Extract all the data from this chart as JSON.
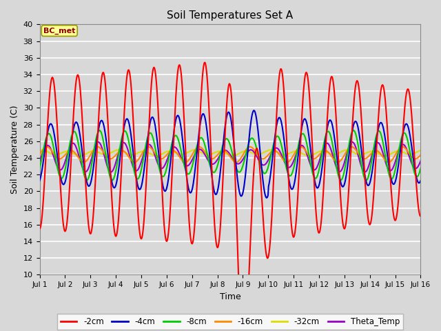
{
  "title": "Soil Temperatures Set A",
  "xlabel": "Time",
  "ylabel": "Soil Temperature (C)",
  "ylim": [
    10,
    40
  ],
  "xlim_start": 0,
  "xlim_end": 15,
  "x_tick_labels": [
    "Jul 1",
    "Jul 2",
    "Jul 3",
    "Jul 4",
    "Jul 5",
    "Jul 6",
    "Jul 7",
    "Jul 8",
    "Jul 9",
    "Jul 10",
    "Jul 11",
    "Jul 12",
    "Jul 13",
    "Jul 14",
    "Jul 15",
    "Jul 16"
  ],
  "annotation_text": "BC_met",
  "colors": {
    "2cm": "#ff0000",
    "4cm": "#0000cc",
    "8cm": "#00cc00",
    "16cm": "#ff8800",
    "32cm": "#dddd00",
    "theta": "#9900cc"
  },
  "fig_bg": "#d8d8d8",
  "plot_bg": "#d8d8d8",
  "legend_labels": [
    "-2cm",
    "-4cm",
    "-8cm",
    "-16cm",
    "-32cm",
    "Theta_Temp"
  ]
}
